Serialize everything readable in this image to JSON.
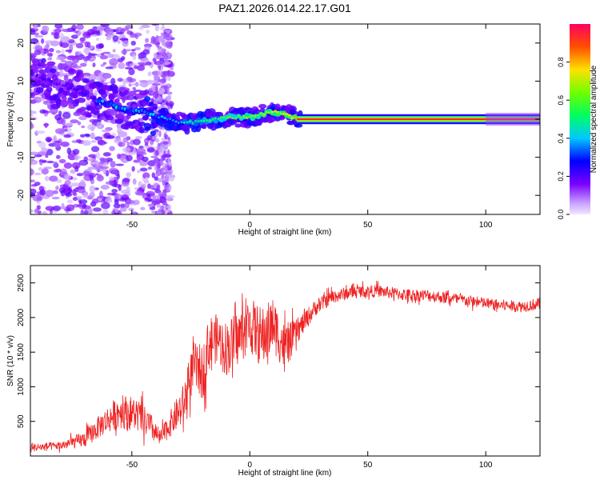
{
  "title": "PAZ1.2026.014.22.17.G01",
  "chart_data": [
    {
      "type": "heatmap",
      "title": "PAZ1.2026.014.22.17.G01",
      "xlabel": "Height of straight line (km)",
      "ylabel": "Frequency (Hz)",
      "xlim": [
        -93,
        123
      ],
      "ylim": [
        -25,
        25
      ],
      "xticks": [
        -50,
        0,
        50,
        100
      ],
      "yticks": [
        -20,
        -10,
        0,
        10,
        20
      ],
      "colorbar": {
        "label": "Normalized spectral amplitude",
        "range": [
          0.0,
          1.0
        ],
        "ticks": [
          0.0,
          0.2,
          0.4,
          0.6,
          0.8
        ]
      },
      "ridge_center_hz": {
        "x_km": [
          -93,
          -85,
          -75,
          -65,
          -55,
          -45,
          -35,
          -28,
          -20,
          -10,
          0,
          10,
          20,
          123
        ],
        "freq_hz": [
          12,
          10,
          8,
          5,
          3,
          2,
          0,
          -1,
          -0.5,
          0.5,
          0.5,
          2,
          0.3,
          0
        ]
      }
    },
    {
      "type": "line",
      "xlabel": "Height of straight line (km)",
      "ylabel": "SNR (10 * v/v)",
      "xlim": [
        -93,
        123
      ],
      "ylim": [
        0,
        2750
      ],
      "xticks": [
        -50,
        0,
        50,
        100
      ],
      "yticks": [
        500,
        1000,
        1500,
        2000,
        2500
      ],
      "series": [
        {
          "name": "SNR",
          "color": "#ee2222",
          "x": [
            -93,
            -80,
            -70,
            -62,
            -55,
            -48,
            -42,
            -38,
            -33,
            -28,
            -24,
            -20,
            -17,
            -14,
            -10,
            -5,
            0,
            5,
            10,
            15,
            20,
            28,
            35,
            45,
            55,
            65,
            75,
            85,
            95,
            105,
            115,
            123
          ],
          "values": [
            120,
            150,
            240,
            480,
            650,
            600,
            420,
            250,
            500,
            750,
            1300,
            1200,
            1650,
            1700,
            1550,
            1700,
            1900,
            1700,
            1900,
            1550,
            1800,
            2150,
            2300,
            2380,
            2380,
            2330,
            2320,
            2280,
            2230,
            2180,
            2160,
            2200
          ],
          "noise_amplitude": [
            60,
            60,
            120,
            180,
            250,
            250,
            200,
            120,
            200,
            300,
            350,
            400,
            400,
            350,
            400,
            400,
            400,
            450,
            400,
            350,
            180,
            120,
            100,
            90,
            90,
            90,
            90,
            85,
            85,
            85,
            85,
            90
          ]
        }
      ]
    }
  ]
}
